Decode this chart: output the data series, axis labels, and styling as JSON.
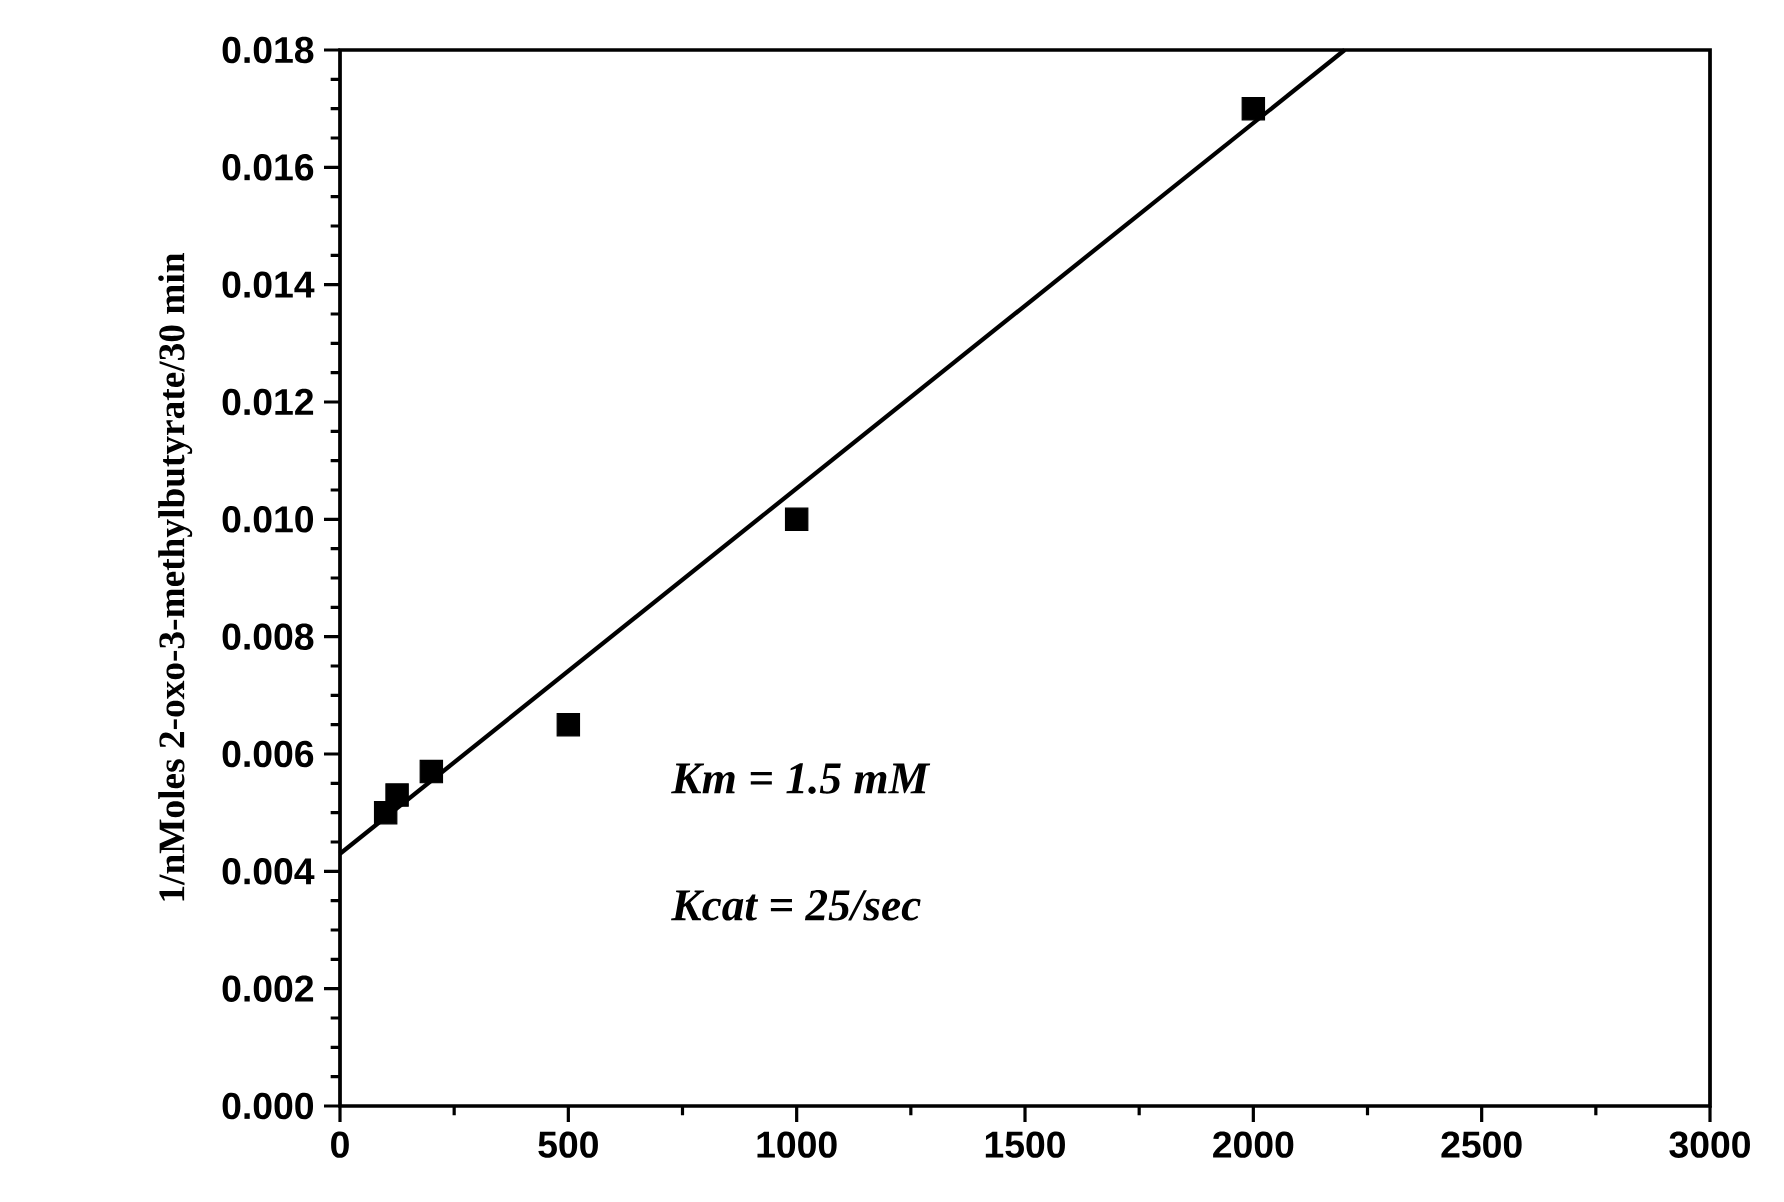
{
  "chart_data": {
    "type": "scatter",
    "ylabel": "1/nMoles 2-oxo-3-methylbutyrate/30 min",
    "annotations": [
      "Km = 1.5 mM",
      "Kcat = 25/sec"
    ],
    "series": [
      {
        "color": "#000000",
        "marker": "square",
        "x": [
          100,
          125,
          200,
          500,
          1000,
          2000
        ],
        "values": [
          0.005,
          0.0053,
          0.0057,
          0.0065,
          0.01,
          0.017
        ]
      },
      {
        "type": "line",
        "color": "#000000",
        "line_style": "solid",
        "marker": "none",
        "x": [
          0,
          2200
        ],
        "values": [
          0.0043,
          0.018
        ]
      }
    ],
    "xlim": [
      0,
      3000
    ],
    "xticks": [
      0,
      500,
      1000,
      1500,
      2000,
      2500,
      3000
    ],
    "ylim": [
      0,
      0.018
    ],
    "yticks": [
      {
        "value": 0,
        "label": "0.000"
      },
      {
        "value": 0.002,
        "label": "0.002"
      },
      {
        "value": 0.004,
        "label": "0.004"
      },
      {
        "value": 0.006,
        "label": "0.006"
      },
      {
        "value": 0.008,
        "label": "0.008"
      },
      {
        "value": 0.01,
        "label": "0.010"
      },
      {
        "value": 0.012,
        "label": "0.012"
      },
      {
        "value": 0.014,
        "label": "0.014"
      },
      {
        "value": 0.016,
        "label": "0.016"
      },
      {
        "value": 0.018,
        "label": "0.018"
      }
    ],
    "grid": false
  }
}
